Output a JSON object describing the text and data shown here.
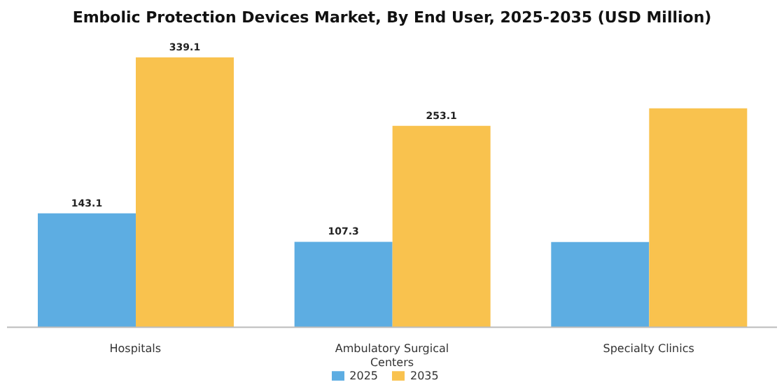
{
  "chart_data": {
    "type": "bar",
    "title": "Embolic Protection Devices Market, By End User, 2025-2035 (USD Million)",
    "categories": [
      "Hospitals",
      "Ambulatory Surgical Centers",
      "Specialty Clinics"
    ],
    "series": [
      {
        "name": "2025",
        "color": "#5dade2",
        "values": [
          143.1,
          107.3,
          107
        ],
        "value_labels": [
          "143.1",
          "107.3",
          null
        ]
      },
      {
        "name": "2035",
        "color": "#f9c24e",
        "values": [
          339.1,
          253.1,
          275
        ],
        "value_labels": [
          "339.1",
          "253.1",
          null
        ]
      }
    ],
    "legend": "bottom",
    "tick_labels": "x"
  }
}
